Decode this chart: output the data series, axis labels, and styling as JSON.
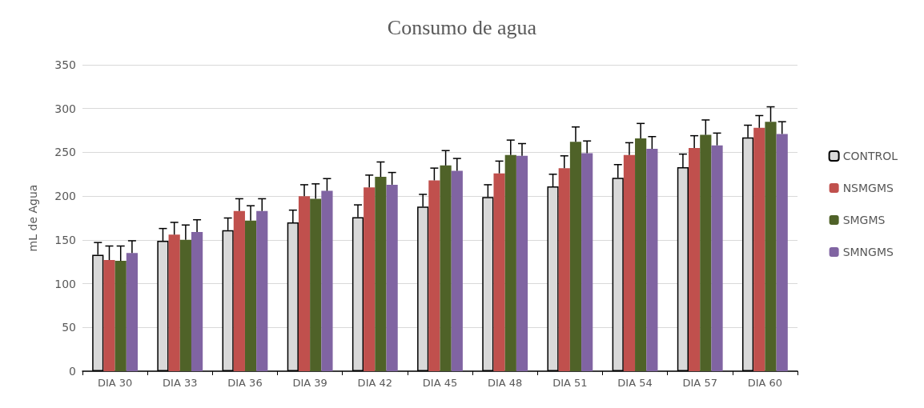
{
  "chart_data": {
    "type": "bar",
    "title": "Consumo de agua",
    "ylabel": "mL de Agua",
    "categories": [
      "DIA 30",
      "DIA 33",
      "DIA 36",
      "DIA 39",
      "DIA 42",
      "DIA 45",
      "DIA 48",
      "DIA 51",
      "DIA 54",
      "DIA 57",
      "DIA 60"
    ],
    "series": [
      {
        "name": "CONTROL",
        "color": "#d9d9d9",
        "values": [
          133,
          149,
          161,
          170,
          176,
          188,
          199,
          211,
          221,
          233,
          267
        ],
        "errors": [
          14,
          14,
          14,
          14,
          14,
          14,
          14,
          14,
          15,
          15,
          14
        ]
      },
      {
        "name": "NSMGMS",
        "color": "#c0504d",
        "values": [
          127,
          156,
          183,
          200,
          210,
          218,
          226,
          232,
          247,
          255,
          278
        ],
        "errors": [
          16,
          14,
          14,
          13,
          14,
          14,
          14,
          14,
          14,
          14,
          14
        ]
      },
      {
        "name": "SMGMS",
        "color": "#4f6228",
        "values": [
          126,
          150,
          172,
          197,
          222,
          235,
          247,
          262,
          266,
          270,
          285
        ],
        "errors": [
          17,
          17,
          17,
          17,
          17,
          17,
          17,
          17,
          17,
          17,
          17
        ]
      },
      {
        "name": "SMNGMS",
        "color": "#8064a2",
        "values": [
          135,
          159,
          183,
          206,
          213,
          229,
          246,
          249,
          254,
          258,
          271
        ],
        "errors": [
          14,
          14,
          14,
          14,
          14,
          14,
          14,
          14,
          14,
          14,
          14
        ]
      }
    ],
    "ylim": [
      0,
      350
    ],
    "yticks": [
      0,
      50,
      100,
      150,
      200,
      250,
      300,
      350
    ],
    "grid": "y",
    "legend": "right"
  }
}
